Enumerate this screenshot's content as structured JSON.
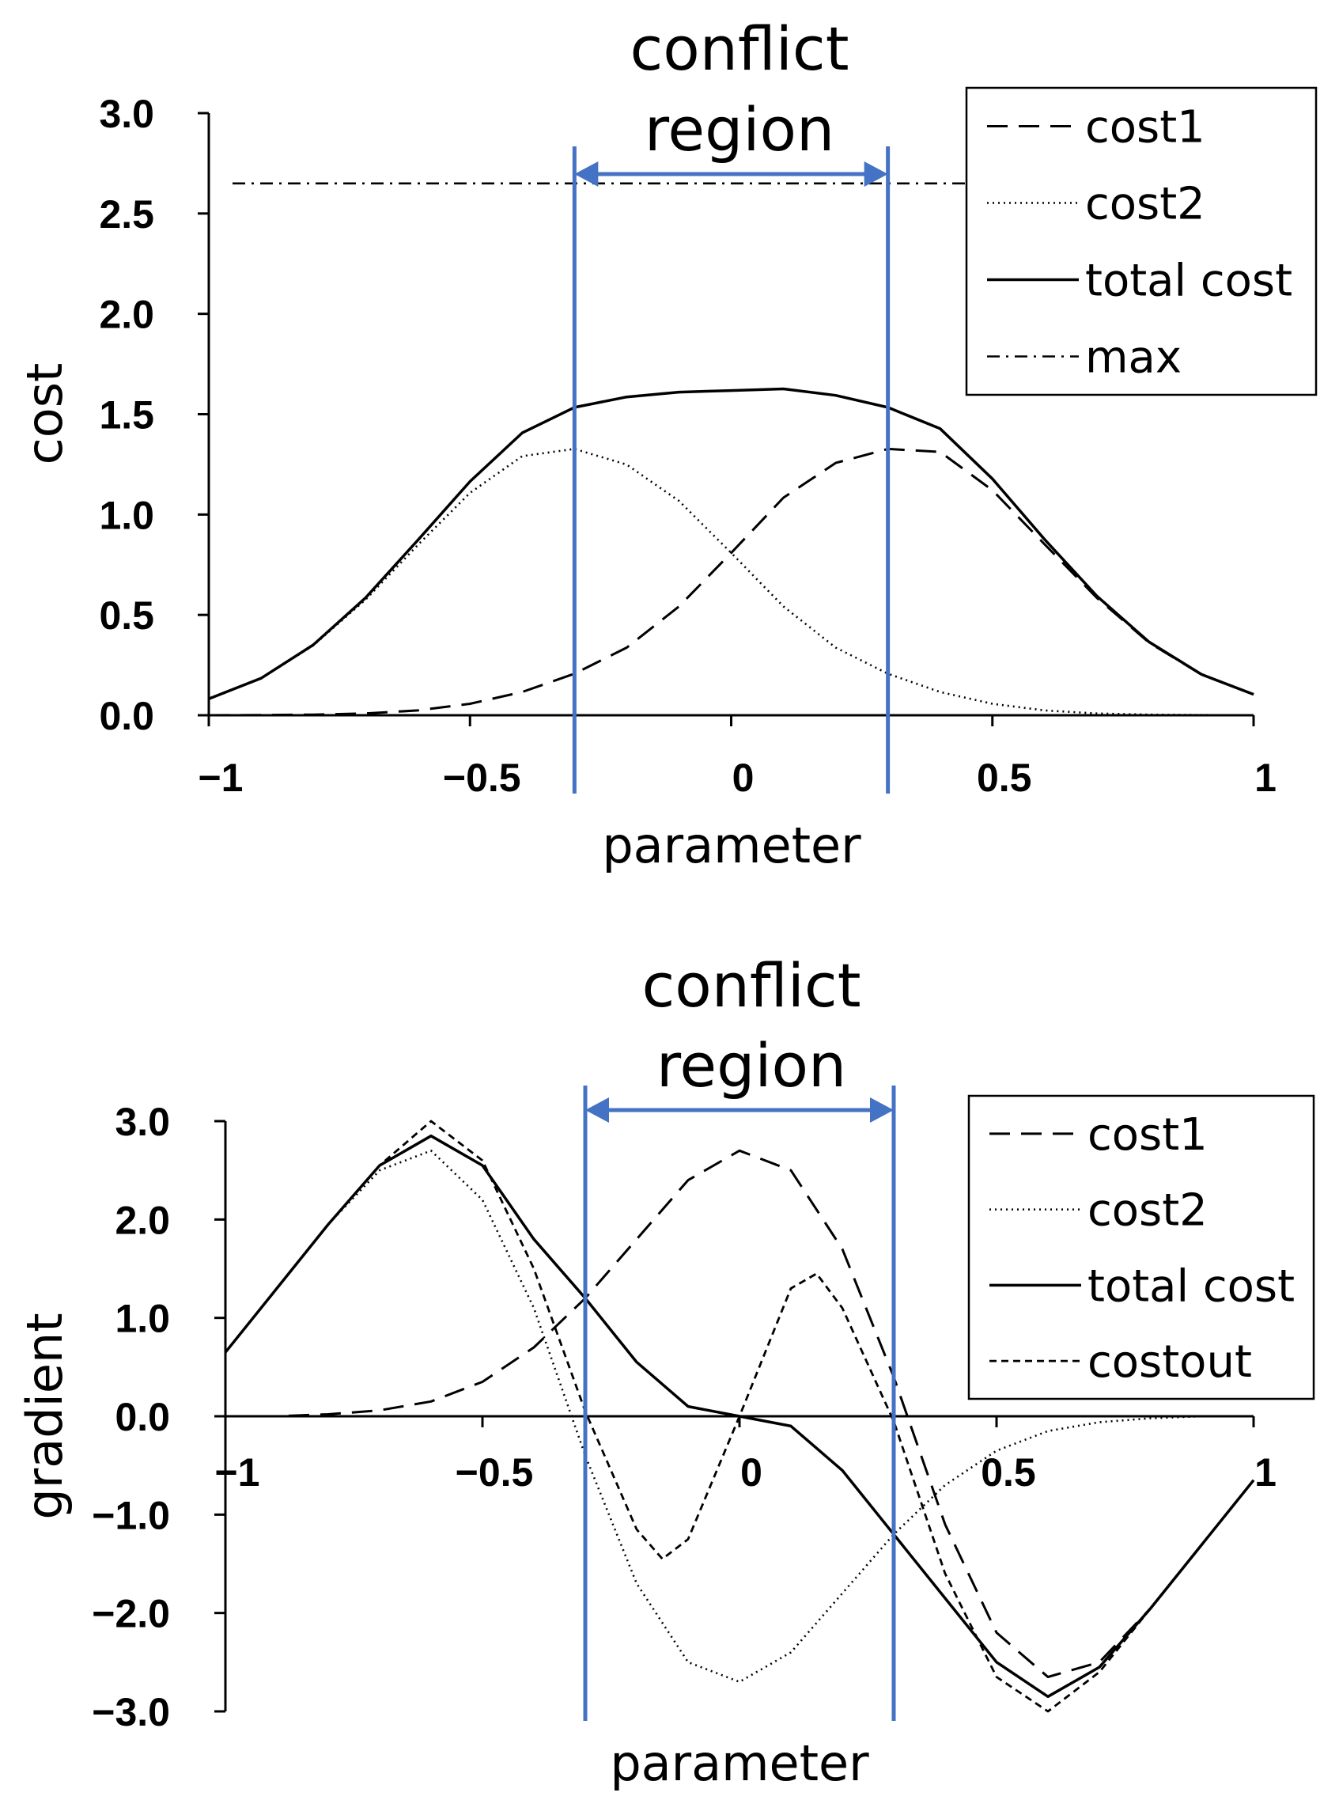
{
  "chart_data": [
    {
      "type": "line",
      "annotation": {
        "line1": "conflict",
        "line2": "region",
        "x_start": -0.3,
        "x_end": 0.3,
        "color": "#4472c4"
      },
      "xlabel": "parameter",
      "ylabel": "cost",
      "xlim": [
        -1,
        1
      ],
      "ylim": [
        0,
        3
      ],
      "x_ticks": [
        "−1",
        "−0.5",
        "0",
        "0.5",
        "1"
      ],
      "x_tick_values": [
        -1,
        -0.5,
        0,
        0.5,
        1
      ],
      "y_ticks": [
        "0.0",
        "0.5",
        "1.0",
        "1.5",
        "2.0",
        "2.5",
        "3.0"
      ],
      "y_tick_values": [
        0,
        0.5,
        1,
        1.5,
        2,
        2.5,
        3
      ],
      "legend": {
        "placement": "top-right"
      },
      "series": [
        {
          "name": "cost1",
          "style": "dashed",
          "x": [
            -1,
            -0.9,
            -0.8,
            -0.7,
            -0.6,
            -0.5,
            -0.4,
            -0.3,
            -0.2,
            -0.1,
            0,
            0.1,
            0.2,
            0.3,
            0.4,
            0.5,
            0.6,
            0.7,
            0.8,
            0.9,
            1
          ],
          "y": [
            0.0,
            0.001,
            0.003,
            0.009,
            0.024,
            0.057,
            0.116,
            0.207,
            0.337,
            0.542,
            0.809,
            1.084,
            1.257,
            1.327,
            1.312,
            1.121,
            0.852,
            0.585,
            0.362,
            0.203,
            0.104
          ]
        },
        {
          "name": "cost2",
          "style": "dotted",
          "x": [
            -1,
            -0.9,
            -0.8,
            -0.7,
            -0.6,
            -0.5,
            -0.4,
            -0.3,
            -0.2,
            -0.1,
            0,
            0.1,
            0.2,
            0.3,
            0.4,
            0.5,
            0.6,
            0.7,
            0.8,
            0.9,
            1
          ],
          "y": [
            0.082,
            0.183,
            0.348,
            0.576,
            0.848,
            1.108,
            1.291,
            1.327,
            1.249,
            1.068,
            0.809,
            0.542,
            0.337,
            0.207,
            0.116,
            0.057,
            0.024,
            0.009,
            0.003,
            0.001,
            0.0
          ]
        },
        {
          "name": "total cost",
          "style": "solid",
          "x": [
            -1,
            -0.9,
            -0.8,
            -0.7,
            -0.6,
            -0.5,
            -0.4,
            -0.3,
            -0.2,
            -0.1,
            0,
            0.1,
            0.2,
            0.3,
            0.4,
            0.5,
            0.6,
            0.7,
            0.8,
            0.9,
            1
          ],
          "y": [
            0.082,
            0.184,
            0.351,
            0.585,
            0.872,
            1.165,
            1.407,
            1.534,
            1.586,
            1.61,
            1.618,
            1.626,
            1.594,
            1.534,
            1.428,
            1.178,
            0.876,
            0.594,
            0.365,
            0.204,
            0.104
          ]
        },
        {
          "name": "max",
          "style": "dashdot",
          "x": [
            -1,
            1
          ],
          "y": [
            2.65,
            2.65
          ]
        }
      ]
    },
    {
      "type": "line",
      "annotation": {
        "line1": "conflict",
        "line2": "region",
        "x_start": -0.3,
        "x_end": 0.3,
        "color": "#4472c4"
      },
      "xlabel": "parameter",
      "ylabel": "gradient",
      "xlim": [
        -1,
        1
      ],
      "ylim": [
        -3,
        3
      ],
      "x_ticks": [
        "−1",
        "−0.5",
        "0",
        "0.5",
        "1"
      ],
      "x_tick_values": [
        -1,
        -0.5,
        0,
        0.5,
        1
      ],
      "y_ticks": [
        "−3.0",
        "−2.0",
        "−1.0",
        "0.0",
        "1.0",
        "2.0",
        "3.0"
      ],
      "y_tick_values": [
        -3,
        -2,
        -1,
        0,
        1,
        2,
        3
      ],
      "legend": {
        "placement": "top-right"
      },
      "series": [
        {
          "name": "cost1",
          "style": "dashed",
          "x": [
            -1,
            -0.9,
            -0.8,
            -0.7,
            -0.6,
            -0.5,
            -0.4,
            -0.3,
            -0.2,
            -0.1,
            0,
            0.1,
            0.2,
            0.3,
            0.4,
            0.5,
            0.6,
            0.7,
            0.8,
            0.9,
            1
          ],
          "y": [
            0.0,
            0.0,
            0.02,
            0.06,
            0.15,
            0.35,
            0.7,
            1.2,
            1.8,
            2.4,
            2.7,
            2.5,
            1.7,
            0.4,
            -1.1,
            -2.2,
            -2.65,
            -2.5,
            -1.95,
            -1.3,
            -0.65
          ]
        },
        {
          "name": "cost2",
          "style": "dotted",
          "x": [
            -1,
            -0.9,
            -0.8,
            -0.7,
            -0.6,
            -0.5,
            -0.4,
            -0.3,
            -0.2,
            -0.1,
            0,
            0.1,
            0.2,
            0.3,
            0.4,
            0.5,
            0.6,
            0.7,
            0.8,
            0.9,
            1
          ],
          "y": [
            0.65,
            1.3,
            1.95,
            2.5,
            2.7,
            2.2,
            1.1,
            -0.4,
            -1.7,
            -2.5,
            -2.7,
            -2.4,
            -1.8,
            -1.2,
            -0.7,
            -0.35,
            -0.15,
            -0.06,
            -0.02,
            0.0,
            0.0
          ]
        },
        {
          "name": "total cost",
          "style": "solid",
          "x": [
            -1,
            -0.9,
            -0.8,
            -0.7,
            -0.6,
            -0.5,
            -0.4,
            -0.3,
            -0.2,
            -0.1,
            0,
            0.1,
            0.2,
            0.3,
            0.4,
            0.5,
            0.6,
            0.7,
            0.8,
            0.9,
            1
          ],
          "y": [
            0.65,
            1.3,
            1.95,
            2.55,
            2.85,
            2.55,
            1.8,
            1.2,
            0.55,
            0.1,
            0.0,
            -0.1,
            -0.55,
            -1.2,
            -1.85,
            -2.5,
            -2.85,
            -2.55,
            -1.95,
            -1.3,
            -0.65
          ]
        },
        {
          "name": "costout",
          "style": "shortdash",
          "x": [
            -1,
            -0.9,
            -0.8,
            -0.7,
            -0.6,
            -0.5,
            -0.4,
            -0.3,
            -0.2,
            -0.15,
            -0.1,
            0,
            0.1,
            0.15,
            0.2,
            0.3,
            0.4,
            0.5,
            0.6,
            0.7,
            0.8,
            0.9,
            1
          ],
          "y": [
            0.65,
            1.3,
            1.95,
            2.55,
            3.0,
            2.6,
            1.5,
            0.05,
            -1.15,
            -1.45,
            -1.25,
            0.0,
            1.3,
            1.45,
            1.1,
            -0.05,
            -1.6,
            -2.65,
            -3.0,
            -2.6,
            -1.95,
            -1.3,
            -0.65
          ]
        }
      ]
    }
  ]
}
